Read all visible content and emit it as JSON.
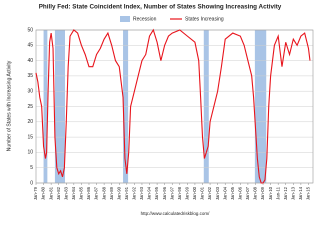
{
  "chart_data": {
    "type": "line",
    "title": "Philly Fed: State Coincident Index, Number of States Showing Increasing Activity",
    "y_label": "Number of States with Increasing Activity",
    "watermark": "http://www.calculatedriskblog.com/",
    "recessions": {
      "name": "Recession",
      "color": "#a9c4e6",
      "ranges": [
        [
          1980.0,
          1980.5
        ],
        [
          1981.5,
          1982.83
        ],
        [
          1990.5,
          1991.17
        ],
        [
          2001.17,
          2001.83
        ],
        [
          2007.92,
          2009.42
        ]
      ]
    },
    "x": [
      1979.0,
      1979.25,
      1979.5,
      1979.75,
      1980.0,
      1980.25,
      1980.4,
      1980.6,
      1980.8,
      1981.0,
      1981.25,
      1981.5,
      1981.75,
      1982.0,
      1982.25,
      1982.5,
      1982.75,
      1983.0,
      1983.25,
      1983.5,
      1984.0,
      1984.5,
      1985.0,
      1985.5,
      1986.0,
      1986.5,
      1987.0,
      1987.5,
      1988.0,
      1988.5,
      1989.0,
      1989.5,
      1990.0,
      1990.5,
      1990.75,
      1991.0,
      1991.25,
      1991.5,
      1992.0,
      1992.5,
      1993.0,
      1993.5,
      1994.0,
      1994.5,
      1995.0,
      1995.5,
      1996.0,
      1996.5,
      1997.0,
      1998.0,
      1999.0,
      2000.0,
      2000.5,
      2000.75,
      2001.0,
      2001.25,
      2001.5,
      2001.75,
      2002.0,
      2002.5,
      2003.0,
      2003.5,
      2004.0,
      2005.0,
      2006.0,
      2006.5,
      2007.0,
      2007.5,
      2007.75,
      2008.0,
      2008.25,
      2008.5,
      2008.75,
      2009.0,
      2009.25,
      2009.5,
      2009.75,
      2010.0,
      2010.5,
      2011.0,
      2011.5,
      2012.0,
      2012.5,
      2013.0,
      2013.5,
      2014.0,
      2014.5,
      2015.0,
      2015.2
    ],
    "series": [
      {
        "name": "States Increasing",
        "color": "#e8141c",
        "values": [
          36,
          33,
          28,
          25,
          12,
          8,
          10,
          30,
          46,
          49,
          44,
          15,
          5,
          3,
          4,
          2,
          5,
          20,
          38,
          48,
          50,
          49,
          45,
          42,
          38,
          38,
          42,
          44,
          47,
          49,
          45,
          40,
          38,
          28,
          8,
          3,
          10,
          25,
          30,
          35,
          40,
          42,
          48,
          50,
          46,
          40,
          45,
          48,
          49,
          50,
          48,
          46,
          40,
          28,
          15,
          8,
          10,
          12,
          20,
          25,
          30,
          38,
          47,
          49,
          48,
          45,
          40,
          35,
          28,
          18,
          8,
          2,
          0,
          0,
          1,
          8,
          25,
          35,
          45,
          48,
          38,
          46,
          42,
          47,
          45,
          48,
          49,
          44,
          40
        ]
      }
    ],
    "xlim": [
      1979,
      2015.6
    ],
    "xticks": [
      {
        "value": 1979,
        "label": "Jan-79"
      },
      {
        "value": 1980,
        "label": "Jan-80"
      },
      {
        "value": 1981,
        "label": "Jan-81"
      },
      {
        "value": 1982,
        "label": "Jan-82"
      },
      {
        "value": 1983,
        "label": "Jan-83"
      },
      {
        "value": 1984,
        "label": "Jan-84"
      },
      {
        "value": 1985,
        "label": "Jan-85"
      },
      {
        "value": 1986,
        "label": "Jan-86"
      },
      {
        "value": 1987,
        "label": "Jan-87"
      },
      {
        "value": 1988,
        "label": "Jan-88"
      },
      {
        "value": 1989,
        "label": "Jan-89"
      },
      {
        "value": 1990,
        "label": "Jan-90"
      },
      {
        "value": 1991,
        "label": "Jan-91"
      },
      {
        "value": 1992,
        "label": "Jan-92"
      },
      {
        "value": 1993,
        "label": "Jan-93"
      },
      {
        "value": 1994,
        "label": "Jan-94"
      },
      {
        "value": 1995,
        "label": "Jan-95"
      },
      {
        "value": 1996,
        "label": "Jan-96"
      },
      {
        "value": 1997,
        "label": "Jan-97"
      },
      {
        "value": 1998,
        "label": "Jan-98"
      },
      {
        "value": 1999,
        "label": "Jan-99"
      },
      {
        "value": 2000,
        "label": "Jan-00"
      },
      {
        "value": 2001,
        "label": "Jan-01"
      },
      {
        "value": 2002,
        "label": "Jan-02"
      },
      {
        "value": 2003,
        "label": "Jan-03"
      },
      {
        "value": 2004,
        "label": "Jan-04"
      },
      {
        "value": 2005,
        "label": "Jan-05"
      },
      {
        "value": 2006,
        "label": "Jan-06"
      },
      {
        "value": 2007,
        "label": "Jan-07"
      },
      {
        "value": 2008,
        "label": "Jan-08"
      },
      {
        "value": 2009,
        "label": "Jan-09"
      },
      {
        "value": 2010,
        "label": "Jan-10"
      },
      {
        "value": 2011,
        "label": "Jan-11"
      },
      {
        "value": 2012,
        "label": "Jan-12"
      },
      {
        "value": 2013,
        "label": "Jan-13"
      },
      {
        "value": 2014,
        "label": "Jan-14"
      },
      {
        "value": 2015,
        "label": "Jan-15"
      }
    ],
    "ylim": [
      0,
      50
    ],
    "yticks": [
      0,
      5,
      10,
      15,
      20,
      25,
      30,
      35,
      40,
      45,
      50
    ],
    "grid": true
  }
}
